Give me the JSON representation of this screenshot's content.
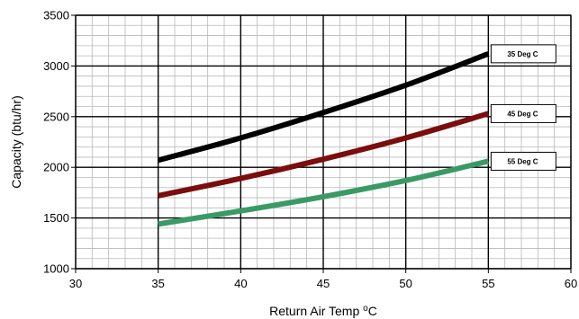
{
  "chart_data": {
    "type": "line",
    "title": "",
    "xlabel_main": "Return Air Temp ",
    "xlabel_sup": "o",
    "xlabel_tail": "C",
    "ylabel": "Capacity (btu/hr)",
    "xlim": [
      30,
      60
    ],
    "ylim": [
      1000,
      3500
    ],
    "x_ticks": [
      30,
      35,
      40,
      45,
      50,
      55,
      60
    ],
    "y_ticks": [
      1000,
      1500,
      2000,
      2500,
      3000,
      3500
    ],
    "x_minor_step": 1,
    "y_minor_step": 100,
    "grid": true,
    "series": [
      {
        "name": "35 Deg C",
        "color": "#000000",
        "x": [
          35,
          40,
          45,
          50,
          55
        ],
        "y": [
          2070,
          2290,
          2540,
          2810,
          3120
        ]
      },
      {
        "name": "45 Deg C",
        "color": "#7b0d0d",
        "x": [
          35,
          40,
          45,
          50,
          55
        ],
        "y": [
          1720,
          1890,
          2080,
          2290,
          2530
        ]
      },
      {
        "name": "55 Deg C",
        "color": "#3a9a66",
        "x": [
          35,
          40,
          45,
          50,
          55
        ],
        "y": [
          1440,
          1570,
          1710,
          1870,
          2060
        ]
      }
    ]
  }
}
